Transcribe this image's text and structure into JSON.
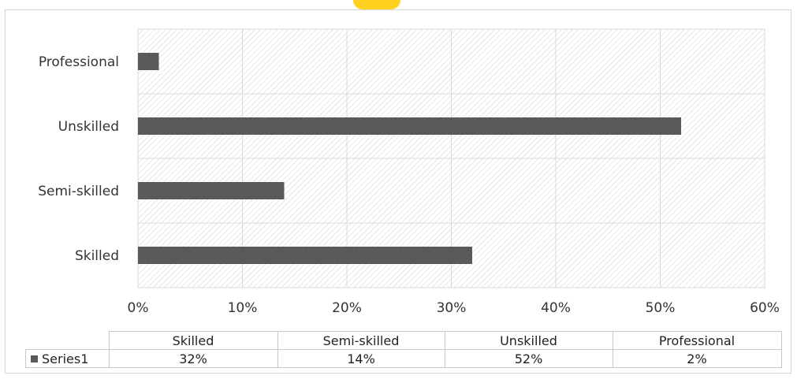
{
  "chart_data": {
    "type": "bar",
    "orientation": "horizontal",
    "categories": [
      "Skilled",
      "Semi-skilled",
      "Unskilled",
      "Professional"
    ],
    "series": [
      {
        "name": "Series1",
        "values": [
          0.32,
          0.14,
          0.52,
          0.02
        ]
      }
    ],
    "xlim": [
      0,
      0.6
    ],
    "x_ticks": [
      "0%",
      "10%",
      "20%",
      "30%",
      "40%",
      "50%",
      "60%"
    ],
    "grid": true,
    "plot_fill": "hatched",
    "bar_color": "#595959",
    "grid_color": "#d9d9d9",
    "data_table": {
      "headers": [
        "Skilled",
        "Semi-skilled",
        "Unskilled",
        "Professional"
      ],
      "rows": [
        {
          "name": "Series1",
          "values": [
            "32%",
            "14%",
            "52%",
            "2%"
          ]
        }
      ]
    }
  }
}
